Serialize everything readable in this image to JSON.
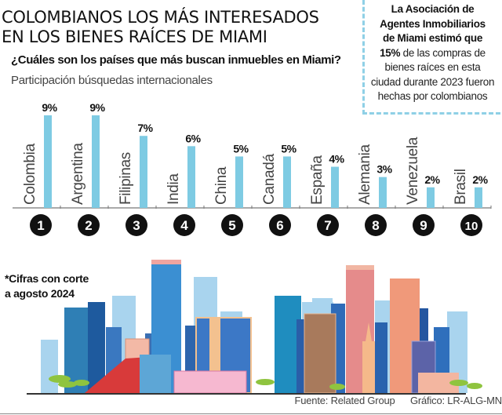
{
  "title": {
    "line1": "COLOMBIANOS LOS MÁS INTERESADOS",
    "line2": "EN LOS BIENES RAÍCES DE MIAMI"
  },
  "subtitle": "¿Cuáles son los países que más buscan inmuebles en Miami?",
  "caption": "Participación búsquedas internacionales",
  "callout": {
    "bold_lines": [
      "La Asociación de",
      "Agentes Inmobiliarios",
      "de Miami estimó que"
    ],
    "highlight": "15%",
    "text_after_highlight": " de las compras de",
    "lines": [
      "bienes raíces en esta",
      "ciudad durante 2023 fueron",
      "hechas por colombianos"
    ],
    "border_color": "#8fd0e6"
  },
  "note": {
    "line1": "*Cifras con corte",
    "line2": "a agosto 2024"
  },
  "footer": {
    "source": "Fuente:  Related Group",
    "credit": "Gráfico: LR-ALG-MN"
  },
  "colors": {
    "bar": "#7ecbe3",
    "badge": "#111111",
    "badge_text": "#ffffff",
    "axis": "#777777"
  },
  "chart_data": {
    "type": "bar",
    "title": "¿Cuáles son los países que más buscan inmuebles en Miami?",
    "subtitle": "Participación búsquedas internacionales",
    "xlabel": "",
    "ylabel": "",
    "ylim": [
      0,
      9
    ],
    "grid": false,
    "unit": "%",
    "categories": [
      "Colombia",
      "Argentina",
      "Filipinas",
      "India",
      "China",
      "Canadá",
      "España",
      "Alemania",
      "Venezuela",
      "Brasil"
    ],
    "ranks": [
      "1",
      "2",
      "3",
      "4",
      "5",
      "6",
      "7",
      "8",
      "9",
      "10"
    ],
    "values": [
      9,
      9,
      7,
      6,
      5,
      5,
      4,
      3,
      2,
      2
    ],
    "labels": [
      "9%",
      "9%",
      "7%",
      "6%",
      "5%",
      "5%",
      "4%",
      "3%",
      "2%",
      "2%"
    ]
  }
}
